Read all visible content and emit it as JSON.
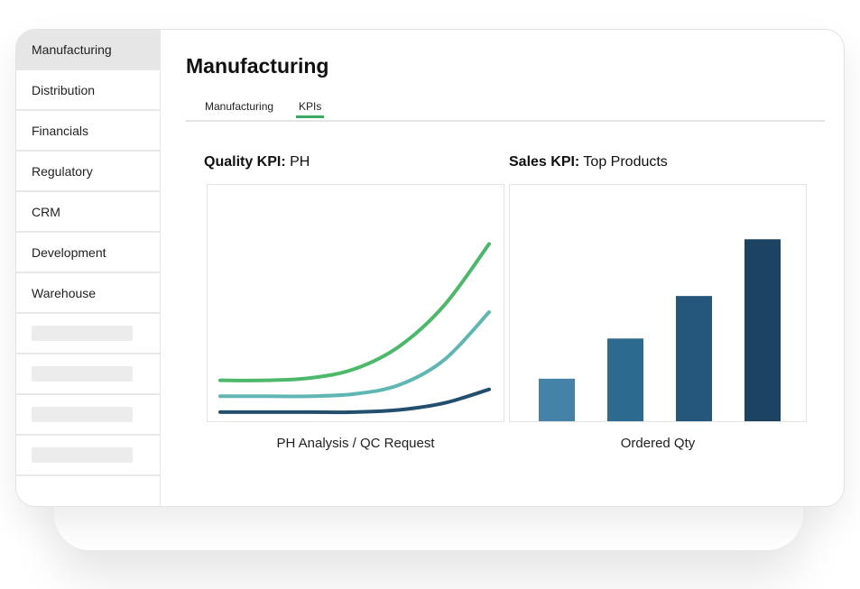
{
  "sidebar": {
    "items": [
      {
        "label": "Manufacturing",
        "active": true
      },
      {
        "label": "Distribution"
      },
      {
        "label": "Financials"
      },
      {
        "label": "Regulatory"
      },
      {
        "label": "CRM"
      },
      {
        "label": "Development"
      },
      {
        "label": "Warehouse"
      }
    ],
    "placeholder_count": 4
  },
  "main": {
    "title": "Manufacturing",
    "tabs": [
      {
        "label": "Manufacturing",
        "active": false
      },
      {
        "label": "KPIs",
        "active": true
      }
    ],
    "quality_kpi": {
      "bold": "Quality KPI:",
      "rest": " PH",
      "caption": "PH Analysis / QC Request"
    },
    "sales_kpi": {
      "bold": "Sales KPI:",
      "rest": " Top Products",
      "caption": "Ordered Qty"
    }
  },
  "colors": {
    "accent": "#3daa64",
    "line_green": "#4cb86a",
    "line_teal": "#5fb6b3",
    "line_navy": "#234f6e",
    "bars": [
      "#4482a8",
      "#2d6a8f",
      "#25577c",
      "#1d4363"
    ]
  },
  "chart_data": [
    {
      "type": "line",
      "series": [
        {
          "values": [
            0.18,
            0.18,
            0.19,
            0.23,
            0.33,
            0.51,
            0.78
          ]
        },
        {
          "values": [
            0.11,
            0.11,
            0.11,
            0.12,
            0.16,
            0.27,
            0.48
          ]
        },
        {
          "values": [
            0.04,
            0.04,
            0.04,
            0.04,
            0.05,
            0.08,
            0.14
          ]
        }
      ],
      "x": [
        0,
        1,
        2,
        3,
        4,
        5,
        6
      ],
      "ylim": [
        0,
        1
      ],
      "grid": false
    },
    {
      "type": "bar",
      "values": [
        0.18,
        0.35,
        0.53,
        0.77
      ],
      "ylim": [
        0,
        1
      ],
      "grid": false
    }
  ]
}
